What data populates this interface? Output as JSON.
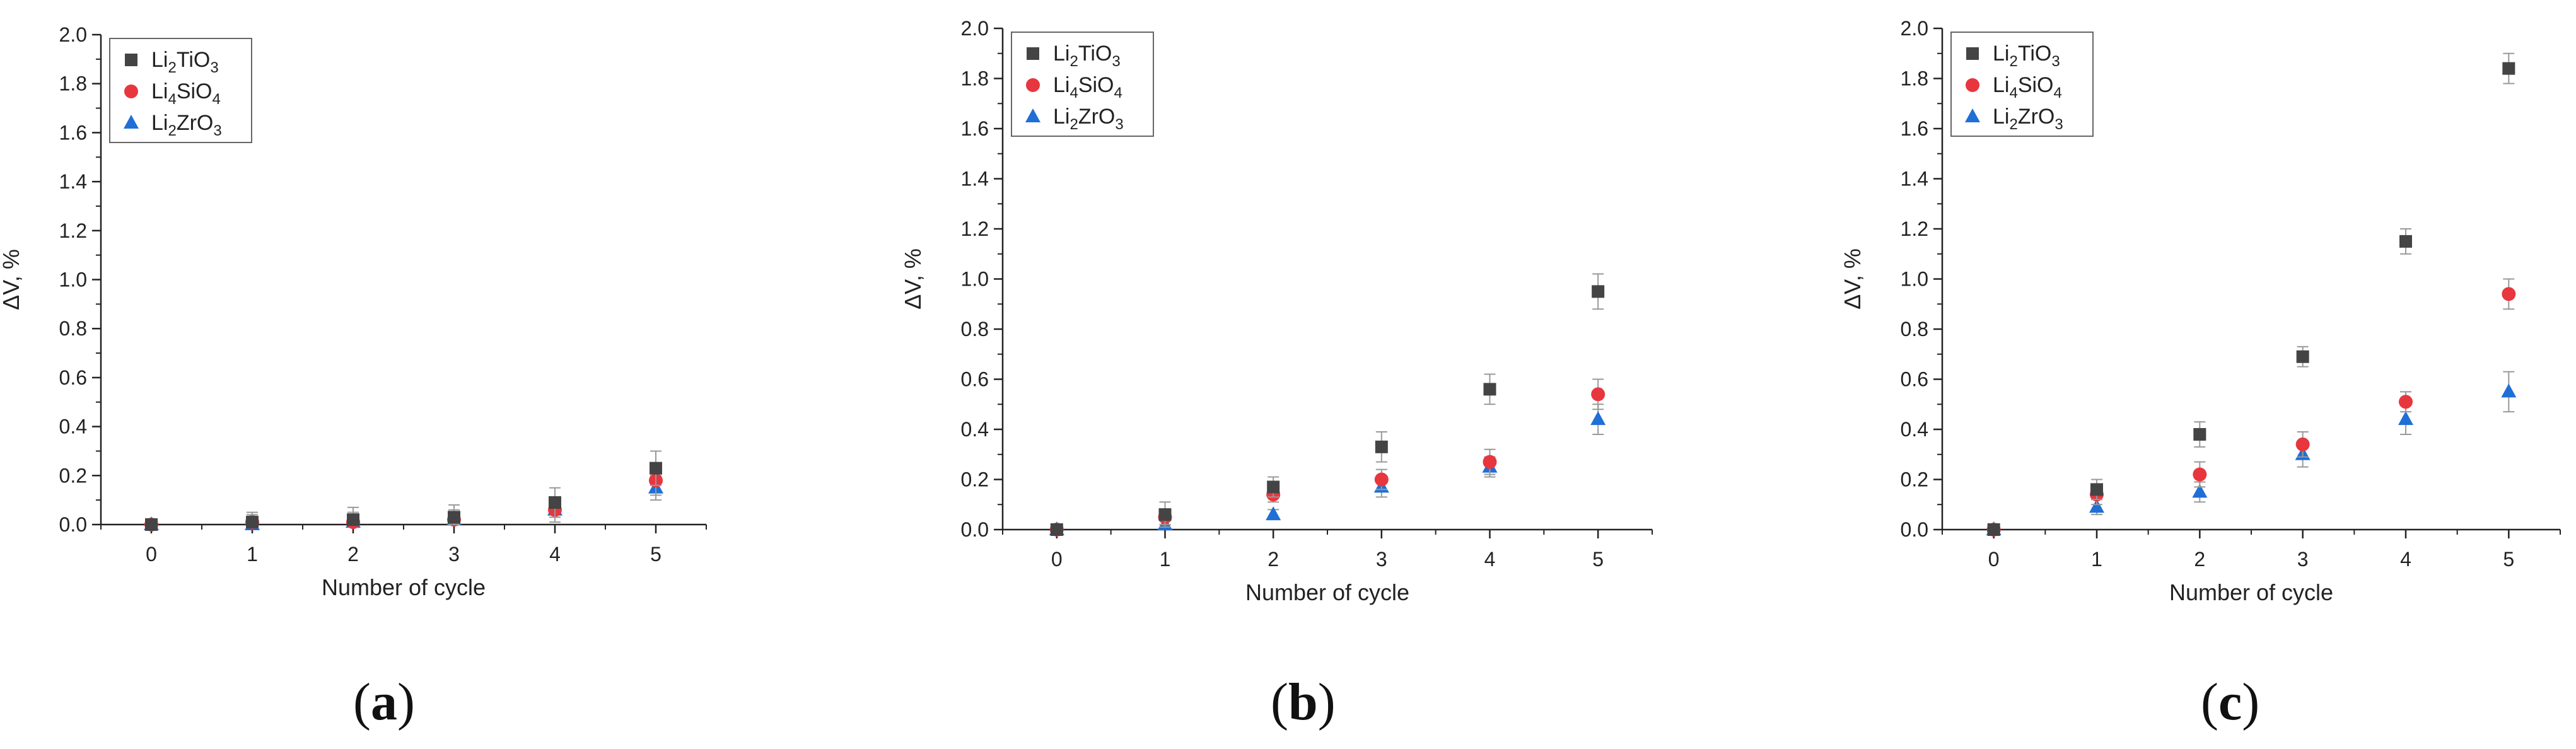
{
  "figure": {
    "captions": [
      "a",
      "b",
      "c"
    ]
  },
  "colors": {
    "Li2TiO3": "#444444",
    "Li4SiO4": "#e8363f",
    "Li2ZrO3": "#1f6fd6",
    "errorbar": "#999999",
    "axis": "#222222"
  },
  "chart_data": [
    {
      "type": "scatter",
      "panel": "a",
      "xlabel": "Number of cycle",
      "ylabel": "ΔV, %",
      "xlim": [
        -0.5,
        5.5
      ],
      "ylim": [
        0.0,
        2.0
      ],
      "xticks": [
        0,
        1,
        2,
        3,
        4,
        5
      ],
      "yticks": [
        0.0,
        0.2,
        0.4,
        0.6,
        0.8,
        1.0,
        1.2,
        1.4,
        1.6,
        1.8,
        2.0
      ],
      "legend_position": "top-left",
      "series": [
        {
          "name": "Li2TiO3",
          "label": [
            "Li",
            "2",
            "TiO",
            "3"
          ],
          "marker": "square",
          "x": [
            0,
            1,
            2,
            3,
            4,
            5
          ],
          "y": [
            0.0,
            0.01,
            0.02,
            0.03,
            0.09,
            0.23
          ],
          "err": [
            0.01,
            0.03,
            0.05,
            0.05,
            0.06,
            0.07
          ]
        },
        {
          "name": "Li4SiO4",
          "label": [
            "Li",
            "4",
            "SiO",
            "4"
          ],
          "marker": "circle",
          "x": [
            0,
            1,
            2,
            3,
            4,
            5
          ],
          "y": [
            0.0,
            0.01,
            0.01,
            0.02,
            0.06,
            0.18
          ],
          "err": [
            0.01,
            0.04,
            0.04,
            0.04,
            0.05,
            0.06
          ]
        },
        {
          "name": "Li2ZrO3",
          "label": [
            "Li",
            "2",
            "ZrO",
            "3"
          ],
          "marker": "triangle",
          "x": [
            0,
            1,
            2,
            3,
            4,
            5
          ],
          "y": [
            0.0,
            0.0,
            0.01,
            0.02,
            0.06,
            0.15
          ],
          "err": [
            0.01,
            0.02,
            0.02,
            0.03,
            0.03,
            0.05
          ]
        }
      ]
    },
    {
      "type": "scatter",
      "panel": "b",
      "xlabel": "Number of cycle",
      "ylabel": "ΔV, %",
      "xlim": [
        -0.5,
        5.5
      ],
      "ylim": [
        0.0,
        2.0
      ],
      "xticks": [
        0,
        1,
        2,
        3,
        4,
        5
      ],
      "yticks": [
        0.0,
        0.2,
        0.4,
        0.6,
        0.8,
        1.0,
        1.2,
        1.4,
        1.6,
        1.8,
        2.0
      ],
      "legend_position": "top-left",
      "series": [
        {
          "name": "Li2TiO3",
          "label": [
            "Li",
            "2",
            "TiO",
            "3"
          ],
          "marker": "square",
          "x": [
            0,
            1,
            2,
            3,
            4,
            5
          ],
          "y": [
            0.0,
            0.06,
            0.17,
            0.33,
            0.56,
            0.95
          ],
          "err": [
            0.01,
            0.05,
            0.04,
            0.06,
            0.06,
            0.07
          ]
        },
        {
          "name": "Li4SiO4",
          "label": [
            "Li",
            "4",
            "SiO",
            "4"
          ],
          "marker": "circle",
          "x": [
            0,
            1,
            2,
            3,
            4,
            5
          ],
          "y": [
            0.0,
            0.05,
            0.14,
            0.2,
            0.27,
            0.54
          ],
          "err": [
            0.01,
            0.03,
            0.03,
            0.04,
            0.05,
            0.06
          ]
        },
        {
          "name": "Li2ZrO3",
          "label": [
            "Li",
            "2",
            "ZrO",
            "3"
          ],
          "marker": "triangle",
          "x": [
            0,
            1,
            2,
            3,
            4,
            5
          ],
          "y": [
            0.0,
            0.02,
            0.06,
            0.17,
            0.25,
            0.44
          ],
          "err": [
            0.01,
            0.02,
            0.02,
            0.04,
            0.04,
            0.06
          ]
        }
      ]
    },
    {
      "type": "scatter",
      "panel": "c",
      "xlabel": "Number of cycle",
      "ylabel": "ΔV, %",
      "xlim": [
        -0.5,
        5.5
      ],
      "ylim": [
        0.0,
        2.0
      ],
      "xticks": [
        0,
        1,
        2,
        3,
        4,
        5
      ],
      "yticks": [
        0.0,
        0.2,
        0.4,
        0.6,
        0.8,
        1.0,
        1.2,
        1.4,
        1.6,
        1.8,
        2.0
      ],
      "legend_position": "top-left",
      "series": [
        {
          "name": "Li2TiO3",
          "label": [
            "Li",
            "2",
            "TiO",
            "3"
          ],
          "marker": "square",
          "x": [
            0,
            1,
            2,
            3,
            4,
            5
          ],
          "y": [
            0.0,
            0.16,
            0.38,
            0.69,
            1.15,
            1.84
          ],
          "err": [
            0.01,
            0.04,
            0.05,
            0.04,
            0.05,
            0.06
          ]
        },
        {
          "name": "Li4SiO4",
          "label": [
            "Li",
            "4",
            "SiO",
            "4"
          ],
          "marker": "circle",
          "x": [
            0,
            1,
            2,
            3,
            4,
            5
          ],
          "y": [
            0.0,
            0.14,
            0.22,
            0.34,
            0.51,
            0.94
          ],
          "err": [
            0.01,
            0.04,
            0.05,
            0.05,
            0.04,
            0.06
          ]
        },
        {
          "name": "Li2ZrO3",
          "label": [
            "Li",
            "2",
            "ZrO",
            "3"
          ],
          "marker": "triangle",
          "x": [
            0,
            1,
            2,
            3,
            4,
            5
          ],
          "y": [
            0.0,
            0.09,
            0.15,
            0.3,
            0.44,
            0.55
          ],
          "err": [
            0.01,
            0.03,
            0.04,
            0.05,
            0.06,
            0.08
          ]
        }
      ]
    }
  ]
}
